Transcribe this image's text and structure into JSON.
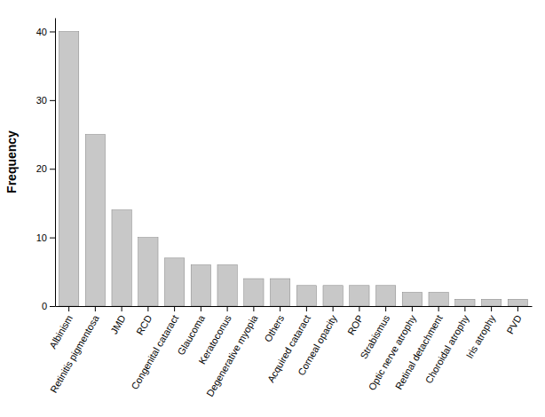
{
  "chart_data": {
    "type": "bar",
    "categories": [
      "Albinism",
      "Retinitis pigmentosa",
      "JMD",
      "RCD",
      "Congenital cataract",
      "Glaucoma",
      "Keratoconus",
      "Degenerative myopia",
      "Others",
      "Acquired cataract",
      "Corneal opacity",
      "ROP",
      "Strabismus",
      "Optic nerve atrophy",
      "Retinal detachment",
      "Choroidal atrophy",
      "Iris atrophy",
      "PVD"
    ],
    "values": [
      40,
      25,
      14,
      10,
      7,
      6,
      6,
      4,
      4,
      3,
      3,
      3,
      3,
      2,
      2,
      1,
      1,
      1
    ],
    "color": "#c8c8c8",
    "ylabel": "Frequency",
    "ylim": [
      0,
      42
    ],
    "yticks": [
      0,
      10,
      20,
      30,
      40
    ],
    "grid": false
  }
}
